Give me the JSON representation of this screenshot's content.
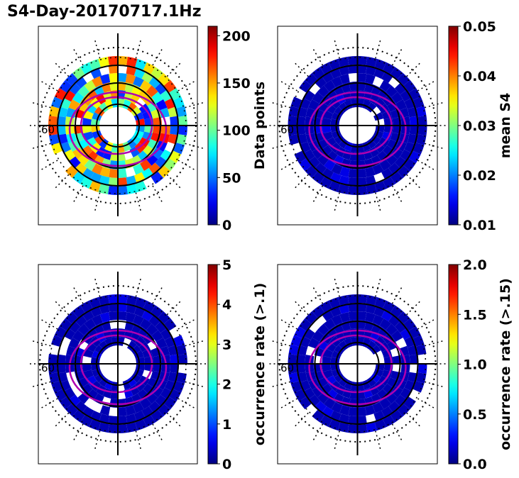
{
  "figure": {
    "title": "S4-Day-20170717.1Hz"
  },
  "chart_data": [
    {
      "type": "heatmap",
      "projection": "polar",
      "colormap": "jet",
      "colorbar": {
        "label": "Data points",
        "range": [
          0,
          210
        ],
        "ticks": [
          "0",
          "50",
          "100",
          "150",
          "200"
        ]
      },
      "ring_label": "60",
      "fill": "mixed",
      "ovals": true
    },
    {
      "type": "heatmap",
      "projection": "polar",
      "colormap": "jet",
      "colorbar": {
        "label": "mean S4",
        "range": [
          0.01,
          0.05
        ],
        "ticks": [
          "0.01",
          "0.02",
          "0.03",
          "0.04",
          "0.05"
        ]
      },
      "ring_label": "60",
      "fill": "low",
      "ovals": true
    },
    {
      "type": "heatmap",
      "projection": "polar",
      "colormap": "jet",
      "colorbar": {
        "label": "occurrence rate (>.1)",
        "range": [
          0,
          5
        ],
        "ticks": [
          "0",
          "1",
          "2",
          "3",
          "4",
          "5"
        ]
      },
      "ring_label": "60",
      "fill": "low",
      "ovals": true
    },
    {
      "type": "heatmap",
      "projection": "polar",
      "colormap": "jet",
      "colorbar": {
        "label": "occurrence rate (>.15)",
        "range": [
          0.0,
          2.0
        ],
        "ticks": [
          "0.0",
          "0.5",
          "1.0",
          "1.5",
          "2.0"
        ]
      },
      "ring_label": "60",
      "fill": "low",
      "ovals": true
    }
  ]
}
